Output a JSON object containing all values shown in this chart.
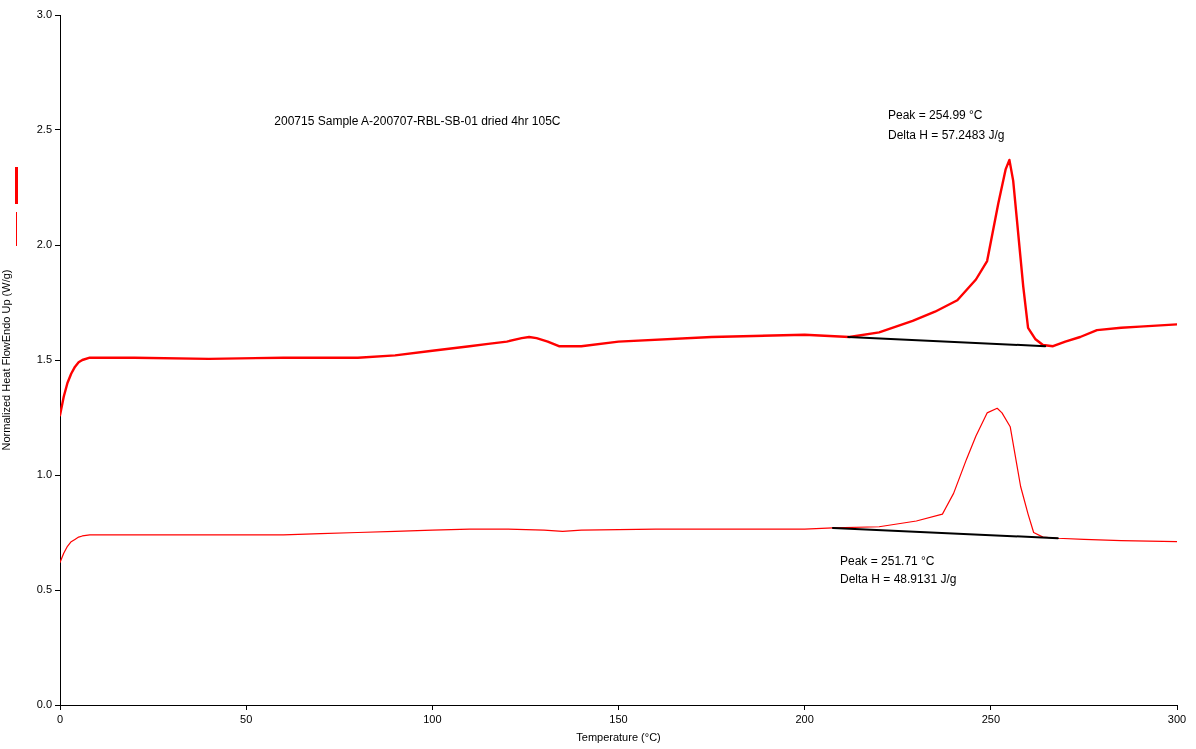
{
  "chart_data": {
    "type": "line",
    "title": "200715 Sample A-200707-RBL-SB-01 dried 4hr 105C",
    "xlabel": "Temperature (°C)",
    "ylabel": "Normalized Heat FlowEndo Up (W/g)",
    "xlim": [
      0,
      300
    ],
    "xticks": [
      0,
      50,
      100,
      150,
      200,
      250,
      300
    ],
    "ylim": [
      0,
      3
    ],
    "yticks": [
      {
        "value": 0,
        "label": "0.0"
      },
      {
        "value": 0.5,
        "label": "0.5"
      },
      {
        "value": 1,
        "label": "1.0"
      },
      {
        "value": 1.5,
        "label": "1.5"
      },
      {
        "value": 2,
        "label": "2.0"
      },
      {
        "value": 2.5,
        "label": "2.5"
      },
      {
        "value": 3,
        "label": "3.0"
      }
    ],
    "grid": false,
    "legend": false,
    "marker": "none",
    "line_style": "solid",
    "series": [
      {
        "color": "#ff0000",
        "x": [
          0,
          1,
          2,
          3,
          4,
          5,
          6,
          8,
          10,
          20,
          40,
          60,
          70,
          80,
          90,
          100,
          110,
          115,
          120,
          124,
          126,
          128,
          131,
          134,
          140,
          150,
          175,
          200,
          212,
          220,
          229,
          235,
          241,
          246,
          249,
          252,
          254,
          254.99,
          256,
          257,
          258.7,
          260,
          262,
          264,
          266.7,
          270,
          274,
          278.5,
          285,
          290,
          300
        ],
        "values": [
          1.26,
          1.34,
          1.4,
          1.44,
          1.47,
          1.49,
          1.5,
          1.51,
          1.51,
          1.51,
          1.505,
          1.51,
          1.51,
          1.51,
          1.52,
          1.54,
          1.56,
          1.57,
          1.58,
          1.595,
          1.6,
          1.595,
          1.58,
          1.56,
          1.56,
          1.58,
          1.6,
          1.61,
          1.6,
          1.62,
          1.67,
          1.71,
          1.76,
          1.85,
          1.93,
          2.18,
          2.33,
          2.37,
          2.28,
          2.11,
          1.82,
          1.64,
          1.59,
          1.565,
          1.56,
          1.58,
          1.6,
          1.63,
          1.64,
          1.645,
          1.655
        ]
      },
      {
        "color": "#ff0000",
        "x": [
          0,
          1,
          2,
          3,
          4,
          5,
          6,
          8,
          10,
          20,
          40,
          60,
          70,
          80,
          90,
          100,
          110,
          115,
          120,
          130,
          135,
          140,
          160,
          180,
          200,
          207.6,
          220,
          230,
          237,
          240,
          243.5,
          246,
          249,
          251.71,
          253,
          255.2,
          258,
          260,
          261.5,
          264,
          268,
          275,
          285,
          300
        ],
        "values": [
          0.62,
          0.66,
          0.69,
          0.71,
          0.72,
          0.73,
          0.735,
          0.74,
          0.74,
          0.74,
          0.74,
          0.74,
          0.745,
          0.75,
          0.755,
          0.76,
          0.765,
          0.765,
          0.765,
          0.76,
          0.755,
          0.76,
          0.765,
          0.765,
          0.765,
          0.77,
          0.775,
          0.8,
          0.83,
          0.92,
          1.07,
          1.17,
          1.27,
          1.29,
          1.27,
          1.21,
          0.95,
          0.83,
          0.75,
          0.73,
          0.725,
          0.72,
          0.715,
          0.71
        ]
      },
      {
        "color": "#000000",
        "x": [
          211.7,
          264.6
        ],
        "values": [
          1.6,
          1.56
        ]
      },
      {
        "color": "#000000",
        "x": [
          207.6,
          268
        ],
        "values": [
          0.77,
          0.725
        ]
      }
    ],
    "annotations": [
      "Peak = 254.99 °C",
      "Delta H = 57.2483 J/g",
      "Peak = 251.71 °C",
      "Delta H = 48.9131 J/g"
    ]
  }
}
